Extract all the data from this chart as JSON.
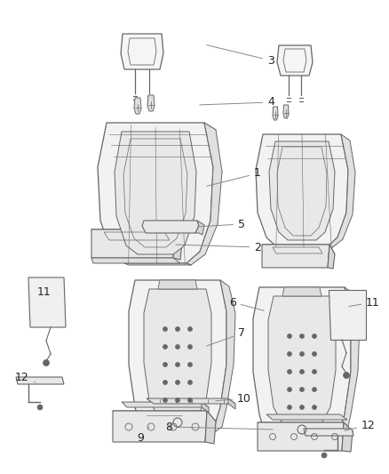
{
  "background_color": "#ffffff",
  "fig_width": 4.38,
  "fig_height": 5.33,
  "dpi": 100,
  "line_color": "#666666",
  "text_color": "#222222",
  "face_color": "#f0f0f0",
  "face_color2": "#e8e8e8"
}
